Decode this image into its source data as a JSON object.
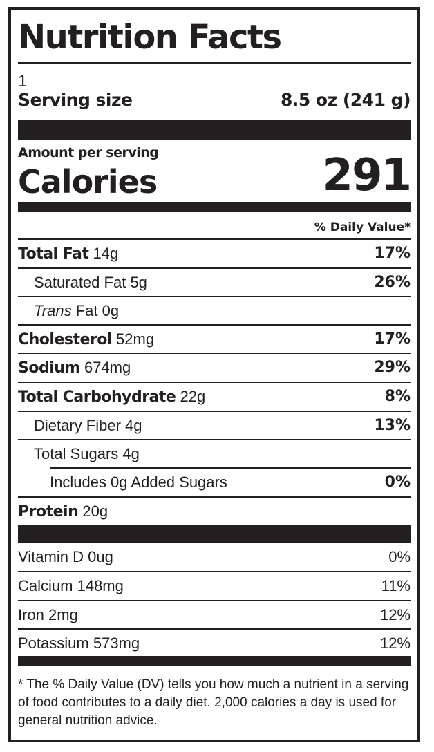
{
  "title": "Nutrition Facts",
  "servings": "1",
  "serving_size": {
    "label": "Serving size",
    "value": "8.5 oz (241 g)"
  },
  "amount_per_serving": "Amount per serving",
  "calories": {
    "label": "Calories",
    "value": "291"
  },
  "daily_value_header": "% Daily Value*",
  "nutrients": [
    {
      "name": "Total Fat",
      "amount": "14g",
      "dv": "17%"
    },
    {
      "name": "Saturated Fat",
      "amount": "5g",
      "dv": "26%"
    },
    {
      "name_italic": "Trans",
      "name": "Fat",
      "amount": "0g",
      "dv": ""
    },
    {
      "name": "Cholesterol",
      "amount": "52mg",
      "dv": "17%"
    },
    {
      "name": "Sodium",
      "amount": "674mg",
      "dv": "29%"
    },
    {
      "name": "Total Carbohydrate",
      "amount": "22g",
      "dv": "8%"
    },
    {
      "name": "Dietary Fiber",
      "amount": "4g",
      "dv": "13%"
    },
    {
      "name": "Total Sugars",
      "amount": "4g",
      "dv": ""
    },
    {
      "name": "Includes 0g Added Sugars",
      "dv": "0%"
    },
    {
      "name": "Protein",
      "amount": "20g",
      "dv": ""
    }
  ],
  "vitamins": [
    {
      "name": "Vitamin D",
      "amount": "0ug",
      "dv": "0%"
    },
    {
      "name": "Calcium",
      "amount": "148mg",
      "dv": "11%"
    },
    {
      "name": "Iron",
      "amount": "2mg",
      "dv": "12%"
    },
    {
      "name": "Potassium",
      "amount": "573mg",
      "dv": "12%"
    }
  ],
  "footnote": "* The % Daily Value (DV) tells you how much a nutrient in a serving of food contributes to a daily diet. 2,000 calories a day is used for general nutrition advice."
}
